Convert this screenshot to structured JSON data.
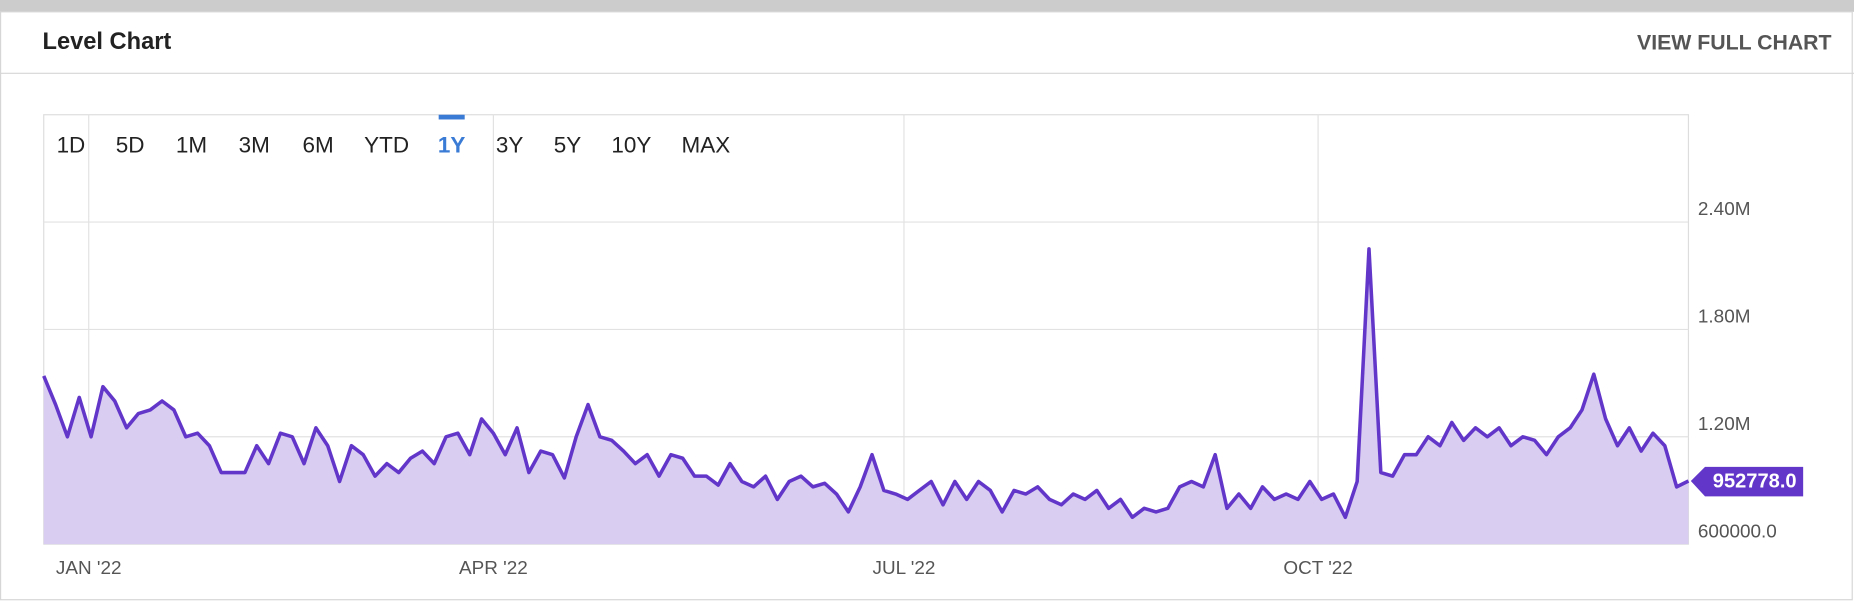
{
  "header": {
    "title": "Level Chart",
    "link": "VIEW FULL CHART"
  },
  "ranges": {
    "options": [
      "1D",
      "5D",
      "1M",
      "3M",
      "6M",
      "YTD",
      "1Y",
      "3Y",
      "5Y",
      "10Y",
      "MAX"
    ],
    "selected": 6
  },
  "chart_data": {
    "type": "line",
    "color": "#6236c9",
    "fill": "#d9cdf1",
    "grid": true,
    "values": [
      1540000,
      1380000,
      1200000,
      1420000,
      1200000,
      1480000,
      1400000,
      1250000,
      1330000,
      1350000,
      1400000,
      1350000,
      1200000,
      1220000,
      1150000,
      1000000,
      1000000,
      1000000,
      1150000,
      1050000,
      1220000,
      1200000,
      1050000,
      1250000,
      1150000,
      950000,
      1150000,
      1100000,
      980000,
      1050000,
      1000000,
      1080000,
      1120000,
      1050000,
      1200000,
      1220000,
      1100000,
      1300000,
      1220000,
      1100000,
      1250000,
      1000000,
      1120000,
      1100000,
      970000,
      1200000,
      1380000,
      1200000,
      1180000,
      1120000,
      1050000,
      1100000,
      980000,
      1100000,
      1080000,
      980000,
      980000,
      930000,
      1050000,
      950000,
      920000,
      980000,
      850000,
      950000,
      980000,
      920000,
      940000,
      880000,
      780000,
      920000,
      1100000,
      900000,
      880000,
      850000,
      900000,
      950000,
      820000,
      950000,
      850000,
      950000,
      900000,
      780000,
      900000,
      880000,
      920000,
      850000,
      820000,
      880000,
      850000,
      900000,
      800000,
      850000,
      750000,
      800000,
      780000,
      800000,
      920000,
      950000,
      920000,
      1100000,
      800000,
      880000,
      800000,
      920000,
      850000,
      880000,
      850000,
      950000,
      850000,
      880000,
      750000,
      950000,
      2250000,
      1000000,
      980000,
      1100000,
      1100000,
      1200000,
      1150000,
      1280000,
      1180000,
      1250000,
      1200000,
      1250000,
      1150000,
      1200000,
      1180000,
      1100000,
      1200000,
      1250000,
      1350000,
      1550000,
      1300000,
      1150000,
      1250000,
      1120000,
      1220000,
      1150000,
      920000,
      952778
    ],
    "value_labels": [
      null,
      null,
      null,
      null,
      null,
      null,
      null,
      null,
      null,
      null,
      null,
      null,
      null,
      null,
      null,
      null,
      null,
      null,
      null,
      null,
      null,
      null,
      null,
      null,
      null,
      null,
      null,
      null,
      null,
      null,
      null,
      null,
      null,
      null,
      null,
      null,
      null,
      null,
      null,
      null,
      null,
      null,
      null,
      null,
      null,
      null,
      null,
      null,
      null,
      null,
      null,
      null,
      null,
      null,
      null,
      null,
      null,
      null,
      null,
      null,
      null,
      null,
      null,
      null,
      null,
      null,
      null,
      null,
      null,
      null,
      null,
      null,
      null,
      null,
      null,
      null,
      null,
      null,
      null,
      null,
      null,
      null,
      null,
      null,
      null,
      null,
      null,
      null,
      null,
      null,
      null,
      null,
      null,
      null,
      null,
      null,
      null,
      null,
      null,
      null,
      null,
      null,
      null,
      null,
      null,
      null,
      null,
      null,
      null,
      null,
      null,
      null,
      null,
      null,
      null,
      null,
      null,
      null,
      null,
      null,
      null,
      null,
      null,
      null,
      null,
      null,
      null,
      null,
      null,
      null,
      null,
      null,
      null,
      null,
      null,
      null,
      null,
      null,
      null,
      "952778.0"
    ],
    "xlim": [
      0,
      139
    ],
    "xticks": [
      {
        "value": 3.8,
        "label": "JAN '22"
      },
      {
        "value": 38,
        "label": "APR '22"
      },
      {
        "value": 72.7,
        "label": "JUL '22"
      },
      {
        "value": 107.7,
        "label": "OCT '22"
      }
    ],
    "ylim": [
      600000,
      3000000
    ],
    "yticks": [
      {
        "value": 600000,
        "label": "600000.0"
      },
      {
        "value": 1200000,
        "label": "1.20M"
      },
      {
        "value": 1800000,
        "label": "1.80M"
      },
      {
        "value": 2400000,
        "label": "2.40M"
      }
    ]
  }
}
